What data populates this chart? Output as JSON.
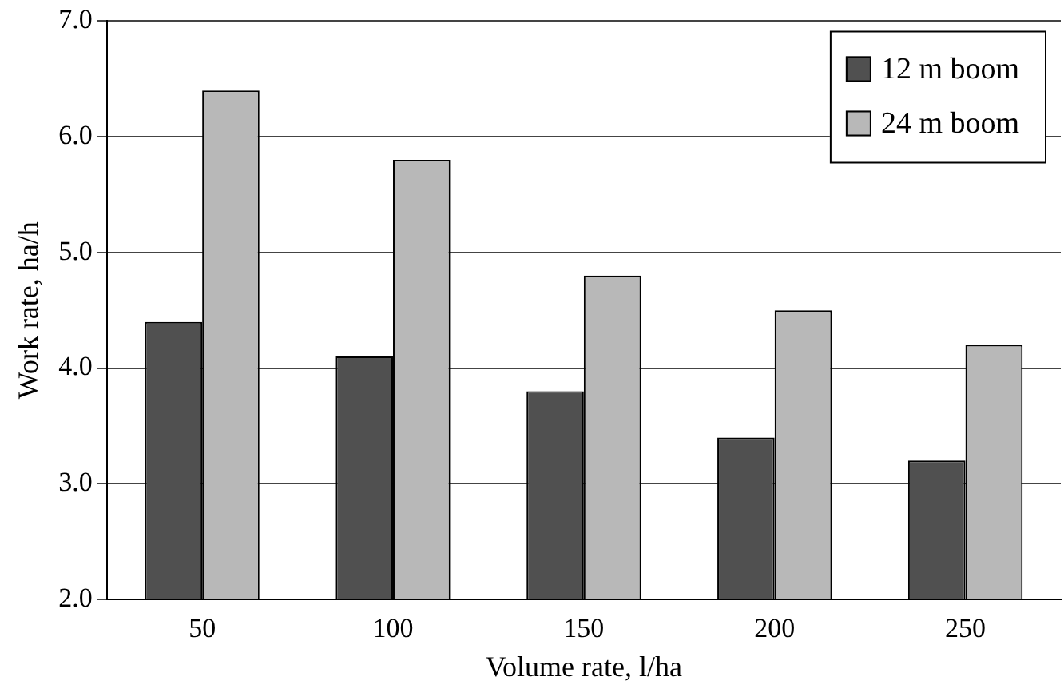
{
  "chart_data": {
    "type": "bar",
    "xlabel": "Volume rate, l/ha",
    "ylabel": "Work rate, ha/h",
    "categories": [
      "50",
      "100",
      "150",
      "200",
      "250"
    ],
    "series": [
      {
        "name": "12 m boom",
        "color": "#505050",
        "values": [
          4.4,
          4.1,
          3.8,
          3.4,
          3.2
        ]
      },
      {
        "name": "24 m boom",
        "color": "#b8b8b8",
        "values": [
          6.4,
          5.8,
          4.8,
          4.5,
          4.2
        ]
      }
    ],
    "ylim": [
      2,
      7
    ],
    "yticks": [
      {
        "value": 2,
        "label": "2.0"
      },
      {
        "value": 3,
        "label": "3.0"
      },
      {
        "value": 4,
        "label": "4.0"
      },
      {
        "value": 5,
        "label": "5.0"
      },
      {
        "value": 6,
        "label": "6.0"
      },
      {
        "value": 7,
        "label": "7.0"
      }
    ],
    "grid": "y",
    "legend": "top right"
  }
}
